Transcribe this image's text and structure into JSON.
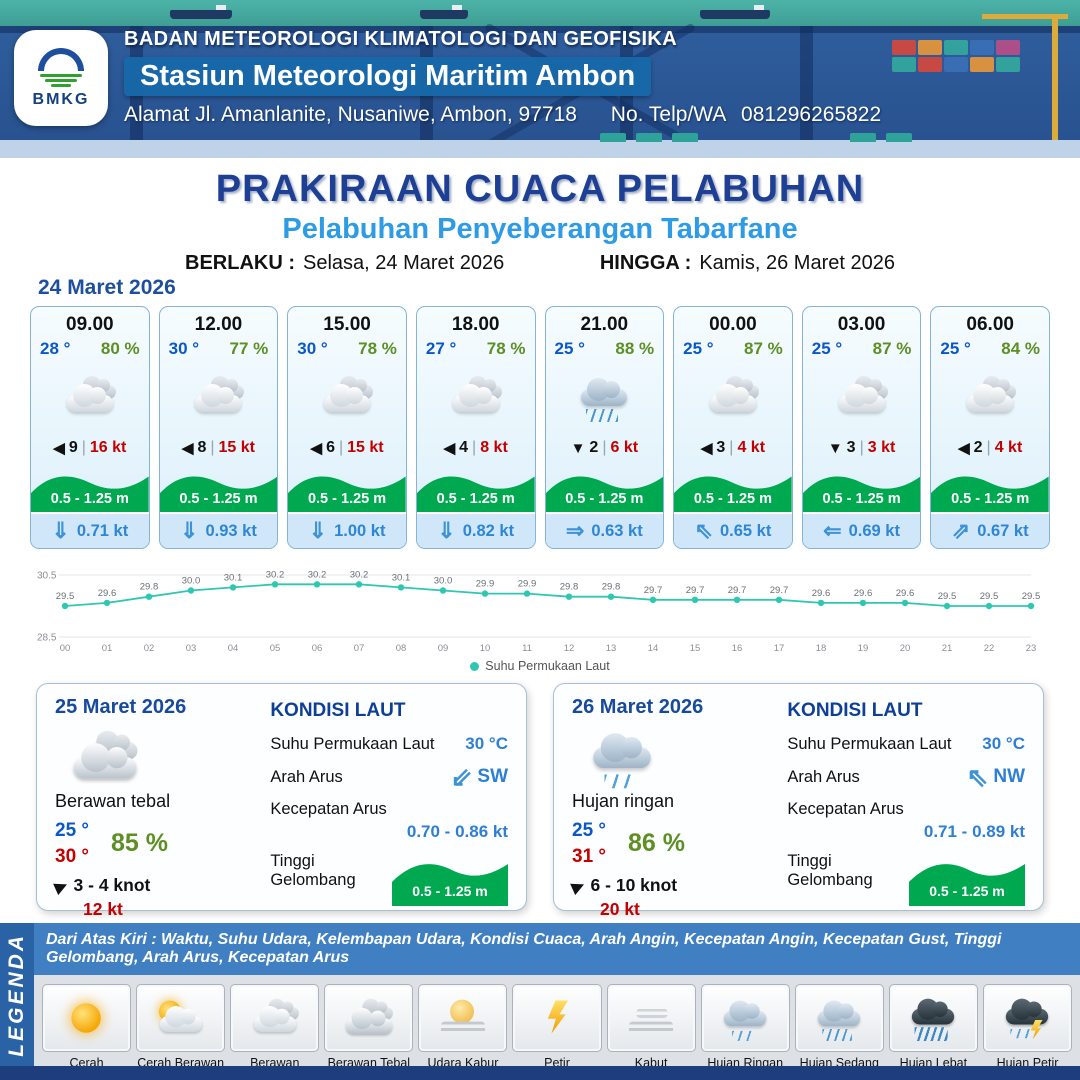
{
  "header": {
    "agency": "BADAN METEOROLOGI KLIMATOLOGI DAN GEOFISIKA",
    "station": "Stasiun Meteorologi Maritim Ambon",
    "address": "Alamat Jl. Amanlanite, Nusaniwe, Ambon, 97718",
    "phone_label": "No. Telp/WA",
    "phone_number": "081296265822",
    "logo_text": "BMKG"
  },
  "title": {
    "main": "PRAKIRAAN CUACA PELABUHAN",
    "subtitle": "Pelabuhan Penyeberangan Tabarfane",
    "valid_from_label": "BERLAKU :",
    "valid_from": "Selasa, 24 Maret 2026",
    "valid_to_label": "HINGGA :",
    "valid_to": "Kamis, 26 Maret 2026"
  },
  "forecast_date": "24 Maret 2026",
  "labels": {
    "divider": "|",
    "sea_heading": "KONDISI LAUT",
    "sst": "Suhu Permukaan Laut",
    "current_dir": "Arah Arus",
    "current_speed": "Kecepatan Arus",
    "wave_height": "Tinggi Gelombang"
  },
  "hourly": [
    {
      "time": "09.00",
      "temp": "28 °",
      "humidity": "80 %",
      "icon": "berawan",
      "wind_arrow": "◀",
      "wind_speed": "9",
      "gust": "16 kt",
      "wave": "0.5 - 1.25 m",
      "current_arrow": "⇓",
      "current_speed": "0.71 kt"
    },
    {
      "time": "12.00",
      "temp": "30 °",
      "humidity": "77 %",
      "icon": "berawan",
      "wind_arrow": "◀",
      "wind_speed": "8",
      "gust": "15 kt",
      "wave": "0.5 - 1.25 m",
      "current_arrow": "⇓",
      "current_speed": "0.93 kt"
    },
    {
      "time": "15.00",
      "temp": "30 °",
      "humidity": "78 %",
      "icon": "berawan",
      "wind_arrow": "◀",
      "wind_speed": "6",
      "gust": "15 kt",
      "wave": "0.5 - 1.25 m",
      "current_arrow": "⇓",
      "current_speed": "1.00 kt"
    },
    {
      "time": "18.00",
      "temp": "27 °",
      "humidity": "78 %",
      "icon": "berawan",
      "wind_arrow": "◀",
      "wind_speed": "4",
      "gust": "8 kt",
      "wave": "0.5 - 1.25 m",
      "current_arrow": "⇓",
      "current_speed": "0.82 kt"
    },
    {
      "time": "21.00",
      "temp": "25 °",
      "humidity": "88 %",
      "icon": "hujan-sedang",
      "wind_arrow": "▼",
      "wind_speed": "2",
      "gust": "6 kt",
      "wave": "0.5 - 1.25 m",
      "current_arrow": "⇒",
      "current_speed": "0.63 kt"
    },
    {
      "time": "00.00",
      "temp": "25 °",
      "humidity": "87 %",
      "icon": "berawan",
      "wind_arrow": "◀",
      "wind_speed": "3",
      "gust": "4 kt",
      "wave": "0.5 - 1.25 m",
      "current_arrow": "⇖",
      "current_speed": "0.65 kt"
    },
    {
      "time": "03.00",
      "temp": "25 °",
      "humidity": "87 %",
      "icon": "berawan",
      "wind_arrow": "▼",
      "wind_speed": "3",
      "gust": "3 kt",
      "wave": "0.5 - 1.25 m",
      "current_arrow": "⇐",
      "current_speed": "0.69 kt"
    },
    {
      "time": "06.00",
      "temp": "25 °",
      "humidity": "84 %",
      "icon": "berawan",
      "wind_arrow": "◀",
      "wind_speed": "2",
      "gust": "4 kt",
      "wave": "0.5 - 1.25 m",
      "current_arrow": "⇗",
      "current_speed": "0.67 kt"
    }
  ],
  "chart_data": {
    "type": "line",
    "legend": "Suhu Permukaan Laut",
    "x": [
      "00",
      "01",
      "02",
      "03",
      "04",
      "05",
      "06",
      "07",
      "08",
      "09",
      "10",
      "11",
      "12",
      "13",
      "14",
      "15",
      "16",
      "17",
      "18",
      "19",
      "20",
      "21",
      "22",
      "23"
    ],
    "values": [
      29.5,
      29.6,
      29.8,
      30.0,
      30.1,
      30.2,
      30.2,
      30.2,
      30.1,
      30.0,
      29.9,
      29.9,
      29.8,
      29.8,
      29.7,
      29.7,
      29.7,
      29.7,
      29.6,
      29.6,
      29.6,
      29.5,
      29.5,
      29.5
    ],
    "ylim": [
      28.5,
      30.5
    ],
    "yticks": [
      30.5,
      28.5
    ],
    "grid": true,
    "legend_position": "bottom",
    "line_color": "#2fc7b2"
  },
  "daily": [
    {
      "date": "25 Maret 2026",
      "icon": "berawan-tebal",
      "condition": "Berawan tebal",
      "temp_min": "25 °",
      "temp_max": "30 °",
      "humidity": "85 %",
      "wind_arrow": "▶",
      "wind_range": "3 - 4 knot",
      "gust": "12 kt",
      "sea": {
        "sst": "30 °C",
        "current_arrow": "⇙",
        "current_dir": "SW",
        "current_speed": "0.70 - 0.86 kt",
        "wave": "0.5 - 1.25 m"
      }
    },
    {
      "date": "26 Maret 2026",
      "icon": "hujan-ringan",
      "condition": "Hujan ringan",
      "temp_min": "25 °",
      "temp_max": "31 °",
      "humidity": "86 %",
      "wind_arrow": "▶",
      "wind_range": "6 - 10 knot",
      "gust": "20 kt",
      "sea": {
        "sst": "30 °C",
        "current_arrow": "⇖",
        "current_dir": "NW",
        "current_speed": "0.71 - 0.89 kt",
        "wave": "0.5 - 1.25 m"
      }
    }
  ],
  "legend": {
    "title": "LEGENDA",
    "note": "Dari Atas Kiri : Waktu, Suhu Udara, Kelembapan Udara, Kondisi Cuaca, Arah Angin, Kecepatan Angin, Kecepatan Gust, Tinggi Gelombang, Arah Arus, Kecepatan Arus",
    "items": [
      {
        "icon": "cerah",
        "label": "Cerah"
      },
      {
        "icon": "cerah-berawan",
        "label": "Cerah Berawan"
      },
      {
        "icon": "berawan",
        "label": "Berawan"
      },
      {
        "icon": "berawan-tebal",
        "label": "Berawan Tebal"
      },
      {
        "icon": "udara-kabur",
        "label": "Udara Kabur"
      },
      {
        "icon": "petir",
        "label": "Petir"
      },
      {
        "icon": "kabut",
        "label": "Kabut"
      },
      {
        "icon": "hujan-ringan",
        "label": "Hujan Ringan"
      },
      {
        "icon": "hujan-sedang",
        "label": "Hujan Sedang"
      },
      {
        "icon": "hujan-lebat",
        "label": "Hujan Lebat"
      },
      {
        "icon": "hujan-petir",
        "label": "Hujan Petir"
      }
    ]
  },
  "colors": {
    "title_navy": "#1d3f94",
    "subtitle_blue": "#2e9be5",
    "temp_blue": "#0a58c8",
    "temp_max_red": "#c40000",
    "humidity_green": "#5d8f23",
    "wave_green": "#00a84f",
    "current_blue": "#3e92d6",
    "chart_teal": "#2fc7b2"
  }
}
